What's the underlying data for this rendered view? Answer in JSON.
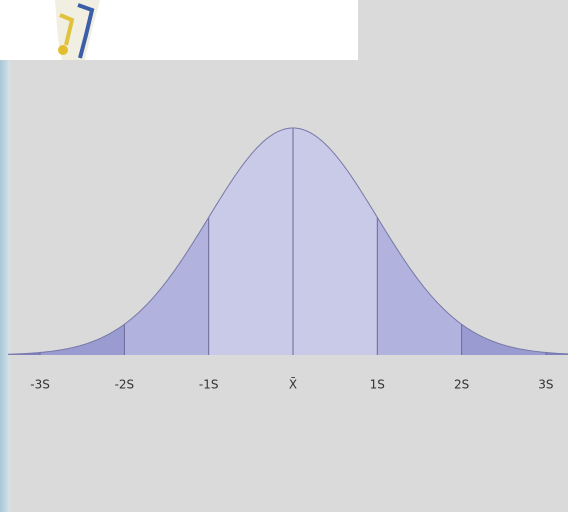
{
  "diagram": {
    "labels": [
      "-3S",
      "-2S",
      "-1S",
      "X̄",
      "1S",
      "2S",
      "3S"
    ]
  }
}
